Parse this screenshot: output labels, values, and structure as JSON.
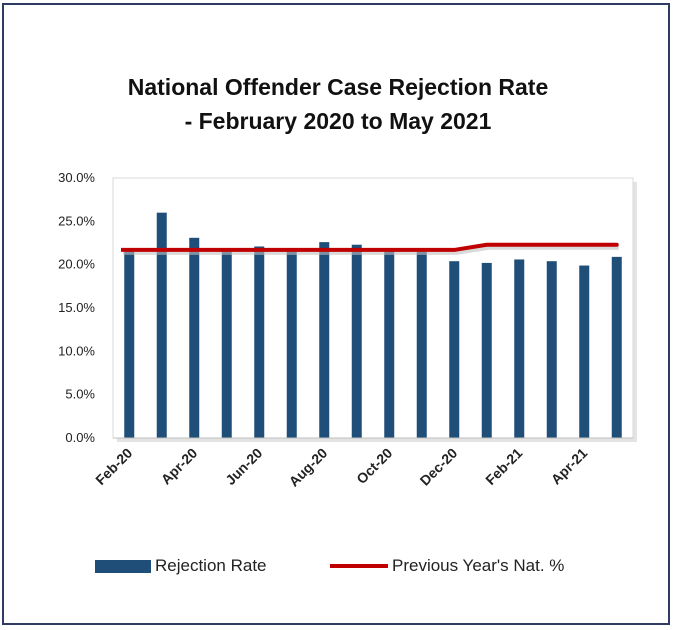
{
  "chart_data": {
    "type": "bar",
    "title_line1": "National Offender Case Rejection Rate",
    "title_line2": "- February 2020 to May 2021",
    "categories": [
      "Feb-20",
      "Mar-20",
      "Apr-20",
      "May-20",
      "Jun-20",
      "Jul-20",
      "Aug-20",
      "Sep-20",
      "Oct-20",
      "Nov-20",
      "Dec-20",
      "Jan-21",
      "Feb-21",
      "Mar-21",
      "Apr-21",
      "May-21"
    ],
    "x_tick_labels": [
      "Feb-20",
      "Apr-20",
      "Jun-20",
      "Aug-20",
      "Oct-20",
      "Dec-20",
      "Feb-21",
      "Apr-21"
    ],
    "series": [
      {
        "name": "Rejection Rate",
        "kind": "bar",
        "color": "#1f4e79",
        "values": [
          21.6,
          26.0,
          23.1,
          21.5,
          22.1,
          21.6,
          22.6,
          22.3,
          21.6,
          21.5,
          20.4,
          20.2,
          20.6,
          20.4,
          19.9,
          20.9
        ]
      },
      {
        "name": "Previous Year's Nat. %",
        "kind": "line",
        "color": "#c00000",
        "values": [
          21.7,
          21.7,
          21.7,
          21.7,
          21.7,
          21.7,
          21.7,
          21.7,
          21.7,
          21.7,
          21.7,
          22.3,
          22.3,
          22.3,
          22.3,
          22.3
        ]
      }
    ],
    "y_ticks": [
      "0.0%",
      "5.0%",
      "10.0%",
      "15.0%",
      "20.0%",
      "25.0%",
      "30.0%"
    ],
    "ylim": [
      0,
      30
    ],
    "xlabel": "",
    "ylabel": "",
    "grid": false,
    "legend_position": "bottom"
  }
}
